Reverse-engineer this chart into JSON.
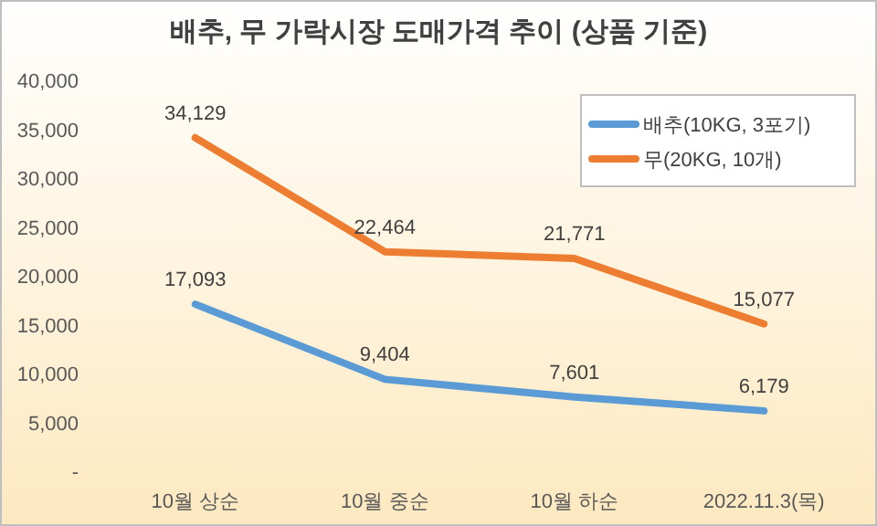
{
  "chart_data": {
    "type": "line",
    "title": "배추, 무 가락시장 도매가격 추이 (상품 기준)",
    "categories": [
      "10월 상순",
      "10월 중순",
      "10월 하순",
      "2022.11.3(목)"
    ],
    "series": [
      {
        "name": "배추(10KG, 3포기)",
        "color": "#5b9bd5",
        "values": [
          17093,
          9404,
          7601,
          6179
        ],
        "value_labels": [
          "17,093",
          "9,404",
          "7,601",
          "6,179"
        ]
      },
      {
        "name": "무(20KG, 10개)",
        "color": "#ed7d31",
        "values": [
          34129,
          22464,
          21771,
          15077
        ],
        "value_labels": [
          "34,129",
          "22,464",
          "21,771",
          "15,077"
        ]
      }
    ],
    "ylim": [
      0,
      40000
    ],
    "yticks": [
      {
        "value": 0,
        "label": "-"
      },
      {
        "value": 5000,
        "label": "5,000"
      },
      {
        "value": 10000,
        "label": "10,000"
      },
      {
        "value": 15000,
        "label": "15,000"
      },
      {
        "value": 20000,
        "label": "20,000"
      },
      {
        "value": 25000,
        "label": "25,000"
      },
      {
        "value": 30000,
        "label": "30,000"
      },
      {
        "value": 35000,
        "label": "35,000"
      },
      {
        "value": 40000,
        "label": "40,000"
      }
    ],
    "legend": "top right",
    "marker": "none",
    "line_style": "solid",
    "grid": false
  }
}
